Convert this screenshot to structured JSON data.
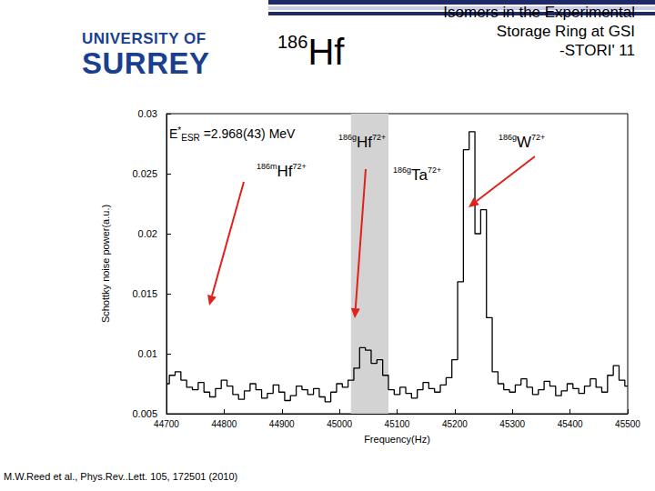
{
  "header": {
    "logo": [
      "UNIVERSITY OF",
      "SURREY"
    ],
    "nuclide": "186Hf",
    "title": [
      "Isomers in the Experimental",
      "Storage Ring at GSI",
      "-STORI' 11"
    ]
  },
  "citation": "M.W.Reed et al., Phys.Rev..Lett. 105, 172501 (2010)",
  "chart_data": {
    "type": "line",
    "x_label": "Frequency(Hz)",
    "y_label": "Schottky noise power(a.u.)",
    "color": "#000000",
    "grid": false,
    "xlim": [
      44700,
      45500
    ],
    "xticks": [
      44700,
      44800,
      44900,
      45000,
      45100,
      45200,
      45300,
      45400,
      45500
    ],
    "ylim": [
      0.005,
      0.03
    ],
    "yticks": [
      0.005,
      0.01,
      0.015,
      0.02,
      0.025,
      0.03
    ],
    "shaded_band": {
      "x": [
        45020,
        45085
      ]
    },
    "annotations": [
      "E*ESR =2.968(43) MeV",
      "186mHf72+",
      "186gHf72+",
      "186gTa72+",
      "186gW72+"
    ],
    "x": [
      44700,
      44710,
      44720,
      44730,
      44740,
      44750,
      44760,
      44770,
      44780,
      44790,
      44800,
      44810,
      44820,
      44830,
      44840,
      44850,
      44860,
      44870,
      44880,
      44890,
      44900,
      44910,
      44920,
      44930,
      44940,
      44950,
      44960,
      44970,
      44980,
      44990,
      45000,
      45010,
      45020,
      45030,
      45040,
      45050,
      45060,
      45070,
      45080,
      45090,
      45100,
      45110,
      45120,
      45130,
      45140,
      45150,
      45160,
      45170,
      45180,
      45190,
      45200,
      45210,
      45220,
      45230,
      45240,
      45250,
      45260,
      45270,
      45280,
      45290,
      45300,
      45310,
      45320,
      45330,
      45340,
      45350,
      45360,
      45370,
      45380,
      45390,
      45400,
      45410,
      45420,
      45430,
      45440,
      45450,
      45460,
      45470,
      45480,
      45490,
      45500
    ],
    "values": [
      0.0075,
      0.0082,
      0.0085,
      0.0078,
      0.0072,
      0.007,
      0.0076,
      0.0068,
      0.0064,
      0.0071,
      0.0078,
      0.0073,
      0.0066,
      0.0062,
      0.0069,
      0.0075,
      0.007,
      0.0063,
      0.0067,
      0.0074,
      0.0068,
      0.0061,
      0.0065,
      0.0073,
      0.007,
      0.0066,
      0.0071,
      0.0064,
      0.006,
      0.0068,
      0.0075,
      0.0072,
      0.0078,
      0.0088,
      0.0105,
      0.0103,
      0.0092,
      0.0095,
      0.0082,
      0.007,
      0.0066,
      0.0072,
      0.0067,
      0.0063,
      0.007,
      0.0076,
      0.0071,
      0.0068,
      0.0074,
      0.008,
      0.0095,
      0.016,
      0.027,
      0.0285,
      0.02,
      0.022,
      0.013,
      0.0085,
      0.0075,
      0.007,
      0.0068,
      0.0074,
      0.0079,
      0.0072,
      0.0066,
      0.007,
      0.0077,
      0.0073,
      0.0065,
      0.0069,
      0.0075,
      0.0071,
      0.0067,
      0.0073,
      0.0079,
      0.0072,
      0.0068,
      0.0082,
      0.009,
      0.0078,
      0.0073
    ]
  }
}
